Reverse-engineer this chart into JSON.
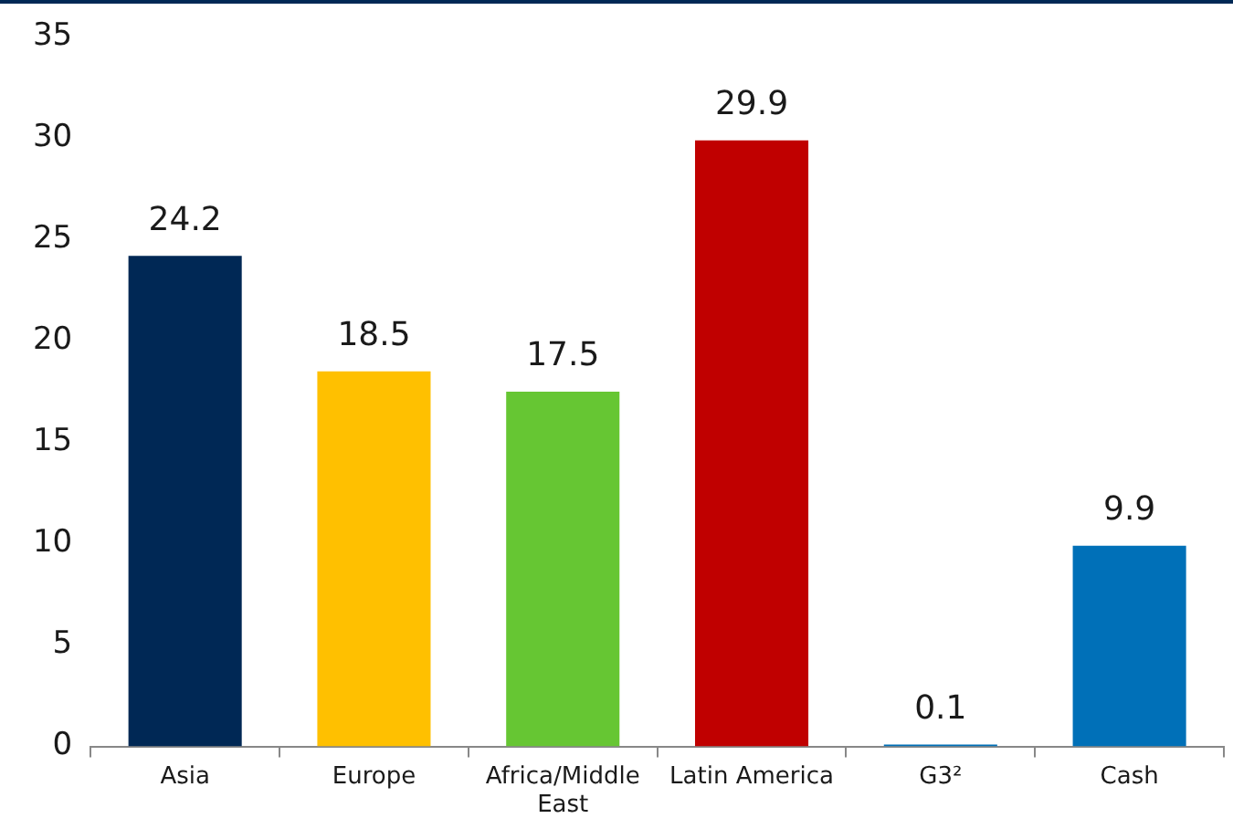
{
  "chart_data": {
    "type": "bar",
    "categories": [
      "Asia",
      "Europe",
      "Africa/Middle East",
      "Latin America",
      "G3²",
      "Cash"
    ],
    "values": [
      24.2,
      18.5,
      17.5,
      29.9,
      0.1,
      9.9
    ],
    "colors": [
      "#002855",
      "#ffc000",
      "#66c633",
      "#c00000",
      "#0070b8",
      "#0070b8"
    ],
    "ylim": [
      0,
      35
    ],
    "yticks": [
      0,
      5,
      10,
      15,
      20,
      25,
      30,
      35
    ],
    "grid": false,
    "legend": false,
    "data_labels": true
  }
}
